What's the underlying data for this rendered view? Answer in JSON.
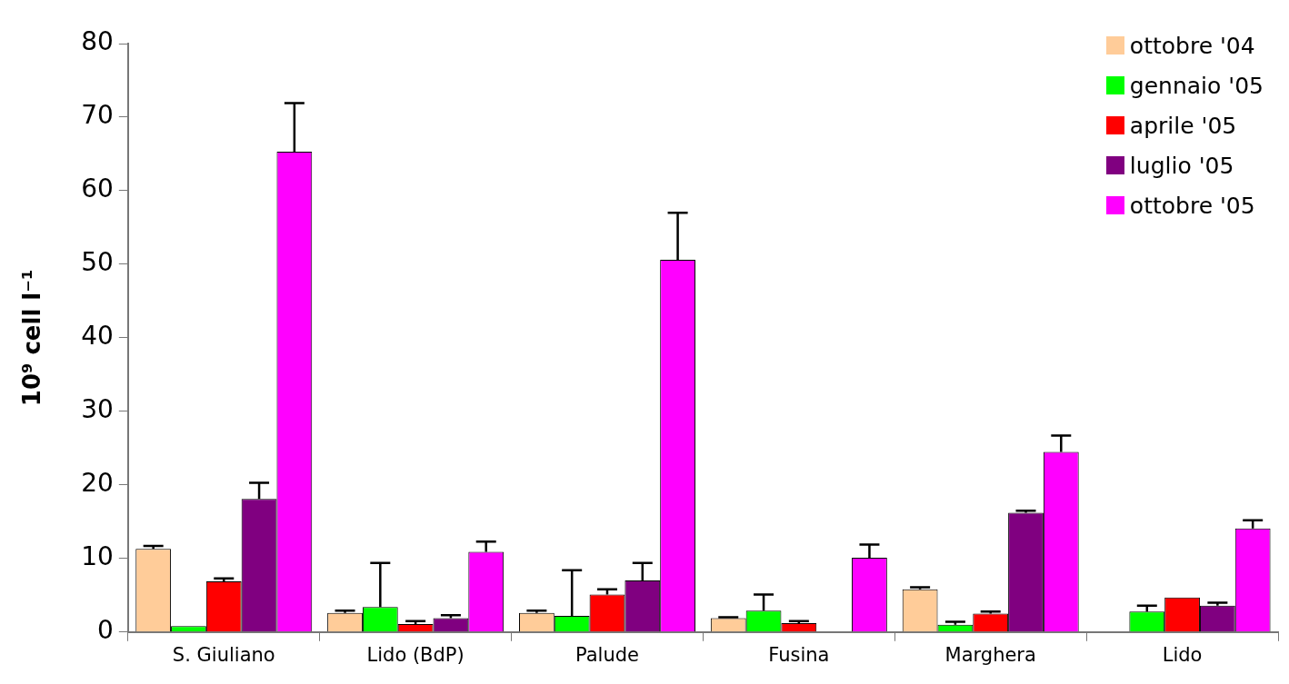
{
  "chart_data": {
    "type": "bar",
    "ylabel": "10⁹ cell l⁻¹",
    "categories": [
      "S. Giuliano",
      "Lido (BdP)",
      "Palude",
      "Fusina",
      "Marghera",
      "Lido"
    ],
    "series": [
      {
        "name": "ottobre '04",
        "color": "#ffcc99",
        "values": [
          11.3,
          2.6,
          2.6,
          1.9,
          5.8,
          null
        ],
        "errors": [
          [
            11.3,
            11.7
          ],
          [
            2.6,
            2.9
          ],
          [
            2.6,
            2.9
          ],
          [
            1.9,
            2.0
          ],
          [
            5.8,
            6.1
          ],
          null
        ]
      },
      {
        "name": "gennaio '05",
        "color": "#00ff00",
        "values": [
          0.8,
          3.4,
          2.2,
          2.9,
          1.0,
          2.8
        ],
        "errors": [
          null,
          [
            3.4,
            9.4
          ],
          [
            2.2,
            8.4
          ],
          [
            2.9,
            5.1
          ],
          [
            1.0,
            1.4
          ],
          [
            2.8,
            3.6
          ]
        ]
      },
      {
        "name": "aprile '05",
        "color": "#ff0000",
        "values": [
          6.9,
          1.1,
          5.1,
          1.2,
          2.5,
          4.7
        ],
        "errors": [
          [
            6.9,
            7.3
          ],
          [
            1.1,
            1.5
          ],
          [
            5.1,
            5.8
          ],
          [
            1.2,
            1.5
          ],
          [
            2.5,
            2.8
          ],
          null
        ]
      },
      {
        "name": "luglio '05",
        "color": "#800080",
        "values": [
          18.1,
          1.9,
          7.0,
          null,
          16.2,
          3.6
        ],
        "errors": [
          [
            18.1,
            20.3
          ],
          [
            1.9,
            2.3
          ],
          [
            7.0,
            9.4
          ],
          null,
          [
            16.2,
            16.5
          ],
          [
            3.6,
            4.0
          ]
        ]
      },
      {
        "name": "ottobre '05",
        "color": "#ff00ff",
        "values": [
          65.3,
          10.9,
          50.6,
          10.1,
          24.5,
          14.1
        ],
        "errors": [
          [
            65.3,
            71.9
          ],
          [
            10.9,
            12.3
          ],
          [
            50.6,
            57.0
          ],
          [
            10.1,
            11.9
          ],
          [
            24.5,
            26.7
          ],
          [
            14.1,
            15.2
          ]
        ]
      }
    ],
    "ylim": [
      0,
      80
    ],
    "yticks": [
      0,
      10,
      20,
      30,
      40,
      50,
      60,
      70,
      80
    ],
    "grid": false,
    "legend": "top right"
  }
}
